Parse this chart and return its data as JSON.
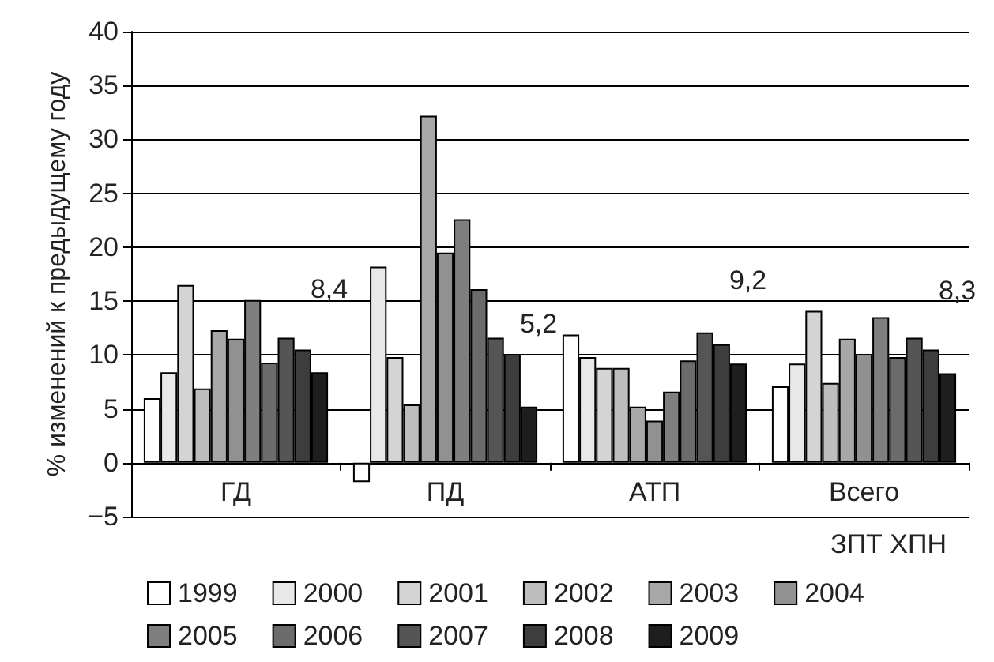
{
  "chart_data": {
    "type": "bar",
    "ylabel": "% изменений к предыдущему году",
    "xlabel": "ЗПТ ХПН",
    "categories": [
      "ГД",
      "ПД",
      "АТП",
      "Всего"
    ],
    "series": [
      {
        "name": "1999",
        "color": "#ffffff",
        "values": [
          6.0,
          -1.8,
          11.9,
          7.1
        ]
      },
      {
        "name": "2000",
        "color": "#e8e8e8",
        "values": [
          8.4,
          18.2,
          9.8,
          9.2
        ]
      },
      {
        "name": "2001",
        "color": "#d4d4d4",
        "values": [
          16.5,
          9.8,
          8.8,
          14.1
        ]
      },
      {
        "name": "2002",
        "color": "#bdbdbd",
        "values": [
          6.9,
          5.4,
          8.8,
          7.4
        ]
      },
      {
        "name": "2003",
        "color": "#a8a8a8",
        "values": [
          12.3,
          32.2,
          5.2,
          11.5
        ]
      },
      {
        "name": "2004",
        "color": "#919191",
        "values": [
          11.5,
          19.5,
          3.9,
          10.1
        ]
      },
      {
        "name": "2005",
        "color": "#7f7f7f",
        "values": [
          15.1,
          22.6,
          6.6,
          13.5
        ]
      },
      {
        "name": "2006",
        "color": "#6b6b6b",
        "values": [
          9.3,
          16.1,
          9.5,
          9.8
        ]
      },
      {
        "name": "2007",
        "color": "#555555",
        "values": [
          11.6,
          11.6,
          12.1,
          11.6
        ]
      },
      {
        "name": "2008",
        "color": "#3d3d3d",
        "values": [
          10.5,
          10.1,
          11.0,
          10.5
        ]
      },
      {
        "name": "2009",
        "color": "#1e1e1e",
        "values": [
          8.4,
          5.2,
          9.2,
          8.3
        ],
        "value_labels": [
          "8,4",
          "5,2",
          "9,2",
          "8,3"
        ]
      }
    ],
    "ylim": [
      -5,
      40
    ],
    "yticks": [
      -5,
      0,
      5,
      10,
      15,
      20,
      25,
      30,
      35,
      40
    ],
    "grid": "y",
    "legend": "bottom"
  }
}
